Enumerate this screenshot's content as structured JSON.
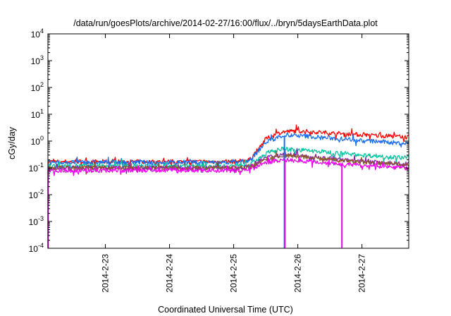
{
  "chart_data": {
    "type": "line",
    "title": "/data/run/goesPlots/archive/2014-02-27/16:00/flux/../bryn/5daysEarthData.plot",
    "xlabel": "Coordinated Universal Time (UTC)",
    "ylabel": "cGy/day",
    "yscale": "log",
    "ylim": [
      0.0001,
      10000
    ],
    "xlim": [
      "2014-02-22T02:30",
      "2014-02-27T17:30"
    ],
    "xticks": [
      "2014-2-23",
      "2014-2-24",
      "2014-2-25",
      "2014-2-26",
      "2014-2-27"
    ],
    "yticks": [
      {
        "base": "10",
        "exp": "-4"
      },
      {
        "base": "10",
        "exp": "-3"
      },
      {
        "base": "10",
        "exp": "-2"
      },
      {
        "base": "10",
        "exp": "-1"
      },
      {
        "base": "10",
        "exp": "0"
      },
      {
        "base": "10",
        "exp": "1"
      },
      {
        "base": "10",
        "exp": "2"
      },
      {
        "base": "10",
        "exp": "3"
      },
      {
        "base": "10",
        "exp": "4"
      }
    ],
    "grid": false,
    "legend": "none",
    "series": [
      {
        "color": "#ff0000",
        "x": [
          "2014-02-22T02:30",
          "2014-02-23T00:00",
          "2014-02-24T00:00",
          "2014-02-25T00:00",
          "2014-02-25T06:00",
          "2014-02-25T12:00",
          "2014-02-25T18:00",
          "2014-02-26T00:00",
          "2014-02-26T12:00",
          "2014-02-27T00:00",
          "2014-02-27T17:30"
        ],
        "y": [
          0.17,
          0.17,
          0.17,
          0.17,
          0.2,
          1.2,
          2.2,
          2.4,
          2.0,
          1.7,
          1.4
        ]
      },
      {
        "color": "#1a6fe8",
        "x": [
          "2014-02-22T02:30",
          "2014-02-23T00:00",
          "2014-02-24T00:00",
          "2014-02-25T00:00",
          "2014-02-25T06:00",
          "2014-02-25T12:00",
          "2014-02-25T18:00",
          "2014-02-26T00:00",
          "2014-02-26T12:00",
          "2014-02-27T00:00",
          "2014-02-27T17:30"
        ],
        "y": [
          0.16,
          0.16,
          0.16,
          0.16,
          0.18,
          0.9,
          1.6,
          1.6,
          1.3,
          1.05,
          0.8
        ]
      },
      {
        "color": "#00c4a0",
        "x": [
          "2014-02-22T02:30",
          "2014-02-23T00:00",
          "2014-02-24T00:00",
          "2014-02-25T00:00",
          "2014-02-25T06:00",
          "2014-02-25T12:00",
          "2014-02-25T18:00",
          "2014-02-26T00:00",
          "2014-02-26T12:00",
          "2014-02-27T00:00",
          "2014-02-27T17:30"
        ],
        "y": [
          0.12,
          0.12,
          0.12,
          0.12,
          0.13,
          0.35,
          0.5,
          0.47,
          0.38,
          0.3,
          0.24
        ]
      },
      {
        "color": "#8a1fb0",
        "x": [
          "2014-02-22T02:30",
          "2014-02-23T00:00",
          "2014-02-24T00:00",
          "2014-02-25T00:00",
          "2014-02-25T06:00",
          "2014-02-25T12:00",
          "2014-02-25T18:00",
          "2014-02-26T00:00",
          "2014-02-26T12:00",
          "2014-02-27T00:00",
          "2014-02-27T17:30"
        ],
        "y": [
          0.1,
          0.1,
          0.1,
          0.1,
          0.11,
          0.24,
          0.32,
          0.3,
          0.22,
          0.17,
          0.14
        ]
      },
      {
        "color": "#8b5a2b",
        "x": [
          "2014-02-22T02:30",
          "2014-02-23T00:00",
          "2014-02-24T00:00",
          "2014-02-25T00:00",
          "2014-02-25T06:00",
          "2014-02-25T12:00",
          "2014-02-25T18:00",
          "2014-02-26T00:00",
          "2014-02-26T12:00",
          "2014-02-27T00:00",
          "2014-02-27T17:30"
        ],
        "y": [
          0.1,
          0.1,
          0.1,
          0.1,
          0.105,
          0.21,
          0.28,
          0.27,
          0.2,
          0.16,
          0.13
        ]
      },
      {
        "color": "#ee00ee",
        "x": [
          "2014-02-22T02:30",
          "2014-02-23T00:00",
          "2014-02-24T00:00",
          "2014-02-25T00:00",
          "2014-02-25T06:00",
          "2014-02-25T12:00",
          "2014-02-25T18:00",
          "2014-02-26T00:00",
          "2014-02-26T12:00",
          "2014-02-27T00:00",
          "2014-02-27T17:30"
        ],
        "y": [
          0.08,
          0.08,
          0.08,
          0.08,
          0.085,
          0.16,
          0.2,
          0.19,
          0.15,
          0.12,
          0.1
        ]
      }
    ],
    "dropouts": [
      {
        "series": 5,
        "x": "2014-02-22T02:35",
        "y": 0.0001
      },
      {
        "series": 1,
        "x": "2014-02-25T19:00",
        "y": 0.0001
      },
      {
        "series": 5,
        "x": "2014-02-25T19:10",
        "y": 0.0001
      },
      {
        "series": 5,
        "x": "2014-02-26T16:30",
        "y": 0.0001
      }
    ]
  }
}
